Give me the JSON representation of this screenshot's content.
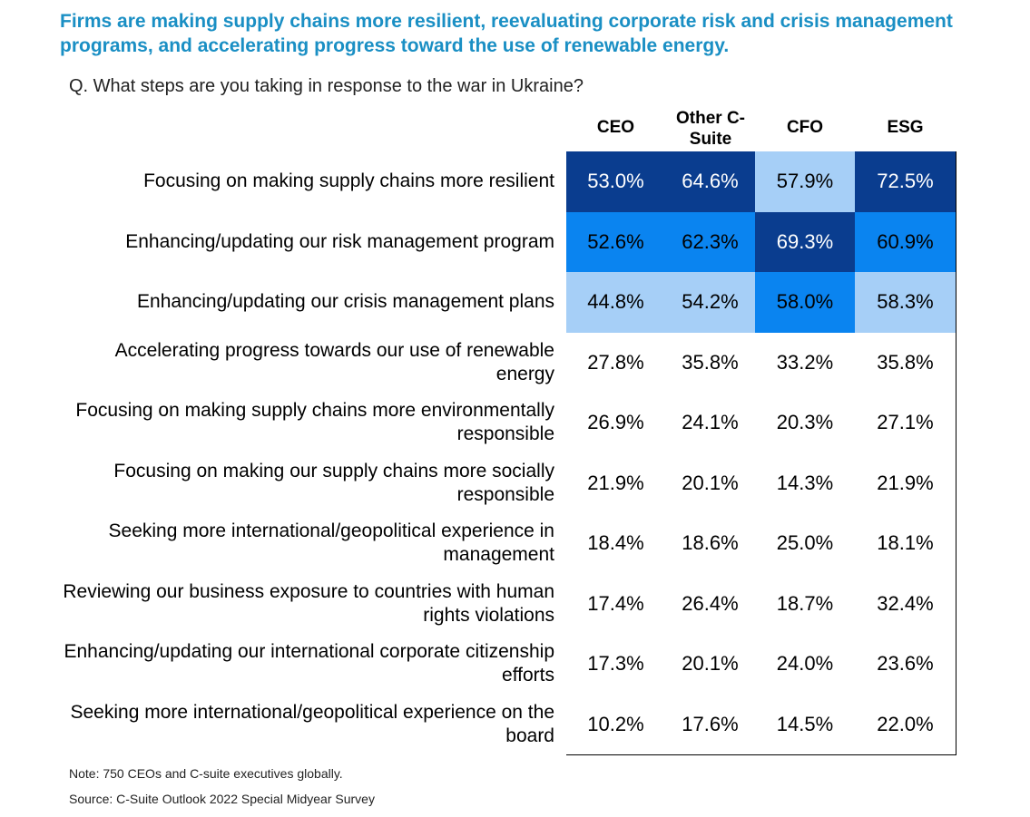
{
  "title": "Firms are making supply chains more resilient, reevaluating corporate risk and crisis management programs, and accelerating progress toward the use of renewable energy.",
  "question": "Q. What steps are you taking in response to the war in Ukraine?",
  "note": "Note: 750 CEOs and C-suite executives globally.",
  "source": "Source: C-Suite Outlook 2022 Special Midyear Survey",
  "colors": {
    "title": "#1A8FC4",
    "dark": "#0A3D8F",
    "medium": "#0A84F0",
    "light": "#A6CFF7",
    "white": "#FFFFFF"
  },
  "chart_data": {
    "type": "table",
    "columns": [
      "CEO",
      "Other C-Suite",
      "CFO",
      "ESG"
    ],
    "rows": [
      {
        "label": "Focusing on making supply chains more resilient",
        "values": [
          "53.0%",
          "64.6%",
          "57.9%",
          "72.5%"
        ],
        "shades": [
          "dark",
          "dark",
          "light",
          "dark"
        ]
      },
      {
        "label": "Enhancing/updating our risk management program",
        "values": [
          "52.6%",
          "62.3%",
          "69.3%",
          "60.9%"
        ],
        "shades": [
          "medium",
          "medium",
          "dark",
          "medium"
        ]
      },
      {
        "label": "Enhancing/updating our crisis management plans",
        "values": [
          "44.8%",
          "54.2%",
          "58.0%",
          "58.3%"
        ],
        "shades": [
          "light",
          "light",
          "medium",
          "light"
        ]
      },
      {
        "label": "Accelerating progress towards our use of renewable energy",
        "values": [
          "27.8%",
          "35.8%",
          "33.2%",
          "35.8%"
        ],
        "shades": [
          "white",
          "white",
          "white",
          "white"
        ]
      },
      {
        "label": "Focusing on making supply chains more environmentally responsible",
        "values": [
          "26.9%",
          "24.1%",
          "20.3%",
          "27.1%"
        ],
        "shades": [
          "white",
          "white",
          "white",
          "white"
        ]
      },
      {
        "label": "Focusing on making our supply chains more socially responsible",
        "values": [
          "21.9%",
          "20.1%",
          "14.3%",
          "21.9%"
        ],
        "shades": [
          "white",
          "white",
          "white",
          "white"
        ]
      },
      {
        "label": "Seeking more international/geopolitical experience in management",
        "values": [
          "18.4%",
          "18.6%",
          "25.0%",
          "18.1%"
        ],
        "shades": [
          "white",
          "white",
          "white",
          "white"
        ]
      },
      {
        "label": "Reviewing our business exposure to countries with human rights violations",
        "values": [
          "17.4%",
          "26.4%",
          "18.7%",
          "32.4%"
        ],
        "shades": [
          "white",
          "white",
          "white",
          "white"
        ]
      },
      {
        "label": "Enhancing/updating our international corporate citizenship efforts",
        "values": [
          "17.3%",
          "20.1%",
          "24.0%",
          "23.6%"
        ],
        "shades": [
          "white",
          "white",
          "white",
          "white"
        ]
      },
      {
        "label": "Seeking more international/geopolitical experience on the board",
        "values": [
          "10.2%",
          "17.6%",
          "14.5%",
          "22.0%"
        ],
        "shades": [
          "white",
          "white",
          "white",
          "white"
        ]
      }
    ]
  }
}
